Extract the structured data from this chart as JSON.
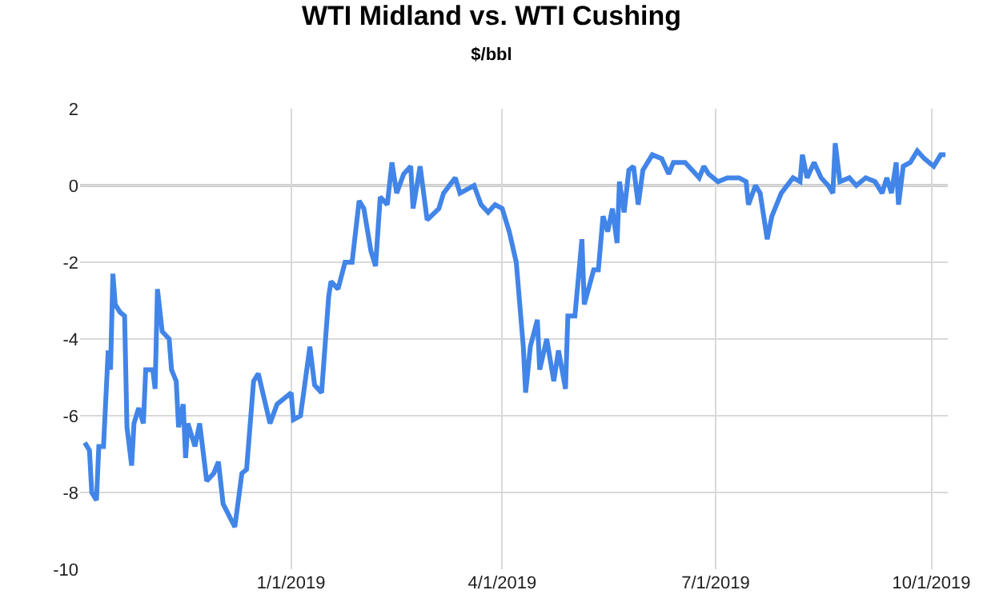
{
  "chart_data": {
    "type": "line",
    "title": "WTI Midland vs. WTI Cushing",
    "subtitle": "$/bbl",
    "x": [
      "2018-10-05",
      "2018-10-07",
      "2018-10-08",
      "2018-10-10",
      "2018-10-11",
      "2018-10-13",
      "2018-10-15",
      "2018-10-16",
      "2018-10-17",
      "2018-10-18",
      "2018-10-20",
      "2018-10-22",
      "2018-10-23",
      "2018-10-25",
      "2018-10-26",
      "2018-10-28",
      "2018-10-30",
      "2018-10-31",
      "2018-11-03",
      "2018-11-04",
      "2018-11-05",
      "2018-11-07",
      "2018-11-10",
      "2018-11-11",
      "2018-11-13",
      "2018-11-14",
      "2018-11-16",
      "2018-11-17",
      "2018-11-18",
      "2018-11-21",
      "2018-11-23",
      "2018-11-26",
      "2018-11-29",
      "2018-12-01",
      "2018-12-03",
      "2018-12-08",
      "2018-12-11",
      "2018-12-13",
      "2018-12-16",
      "2018-12-18",
      "2018-12-23",
      "2018-12-26",
      "2019-01-01",
      "2019-01-02",
      "2019-01-05",
      "2019-01-09",
      "2019-01-11",
      "2019-01-14",
      "2019-01-17",
      "2019-01-18",
      "2019-01-21",
      "2019-01-24",
      "2019-01-27",
      "2019-01-30",
      "2019-02-01",
      "2019-02-04",
      "2019-02-06",
      "2019-02-08",
      "2019-02-11",
      "2019-02-13",
      "2019-02-15",
      "2019-02-18",
      "2019-02-21",
      "2019-02-22",
      "2019-02-25",
      "2019-02-28",
      "2019-03-05",
      "2019-03-07",
      "2019-03-12",
      "2019-03-14",
      "2019-03-20",
      "2019-03-23",
      "2019-03-26",
      "2019-03-29",
      "2019-04-01",
      "2019-04-04",
      "2019-04-07",
      "2019-04-10",
      "2019-04-11",
      "2019-04-13",
      "2019-04-16",
      "2019-04-17",
      "2019-04-20",
      "2019-04-23",
      "2019-04-25",
      "2019-04-28",
      "2019-04-29",
      "2019-05-02",
      "2019-05-05",
      "2019-05-06",
      "2019-05-10",
      "2019-05-12",
      "2019-05-14",
      "2019-05-16",
      "2019-05-18",
      "2019-05-20",
      "2019-05-21",
      "2019-05-23",
      "2019-05-25",
      "2019-05-27",
      "2019-05-29",
      "2019-05-31",
      "2019-06-03",
      "2019-06-04",
      "2019-06-08",
      "2019-06-11",
      "2019-06-13",
      "2019-06-18",
      "2019-06-21",
      "2019-06-24",
      "2019-06-26",
      "2019-06-28",
      "2019-07-02",
      "2019-07-06",
      "2019-07-11",
      "2019-07-14",
      "2019-07-15",
      "2019-07-18",
      "2019-07-20",
      "2019-07-23",
      "2019-07-25",
      "2019-07-29",
      "2019-08-03",
      "2019-08-06",
      "2019-08-07",
      "2019-08-09",
      "2019-08-12",
      "2019-08-15",
      "2019-08-18",
      "2019-08-20",
      "2019-08-21",
      "2019-08-23",
      "2019-08-27",
      "2019-08-30",
      "2019-09-03",
      "2019-09-07",
      "2019-09-10",
      "2019-09-12",
      "2019-09-14",
      "2019-09-16",
      "2019-09-17",
      "2019-09-19",
      "2019-09-22",
      "2019-09-25",
      "2019-09-28",
      "2019-10-02",
      "2019-10-05",
      "2019-10-07"
    ],
    "series": [
      {
        "color": "#4285e8",
        "values": [
          -6.7,
          -6.9,
          -8.0,
          -8.2,
          -6.8,
          -6.8,
          -4.3,
          -4.8,
          -2.3,
          -3.1,
          -3.3,
          -3.4,
          -6.3,
          -7.3,
          -6.2,
          -5.8,
          -6.2,
          -4.8,
          -4.8,
          -5.3,
          -2.7,
          -3.8,
          -4.0,
          -4.8,
          -5.1,
          -6.3,
          -5.7,
          -7.1,
          -6.2,
          -6.8,
          -6.2,
          -7.7,
          -7.5,
          -7.2,
          -8.3,
          -8.9,
          -7.5,
          -7.4,
          -5.1,
          -4.9,
          -6.2,
          -5.7,
          -5.4,
          -6.1,
          -6.0,
          -4.2,
          -5.2,
          -5.4,
          -2.9,
          -2.5,
          -2.7,
          -2.0,
          -2.0,
          -0.4,
          -0.6,
          -1.7,
          -2.1,
          -0.3,
          -0.5,
          0.6,
          -0.2,
          0.3,
          0.5,
          -0.6,
          0.5,
          -0.9,
          -0.6,
          -0.2,
          0.2,
          -0.2,
          0.0,
          -0.5,
          -0.7,
          -0.5,
          -0.6,
          -1.2,
          -2.0,
          -4.2,
          -5.4,
          -4.2,
          -3.5,
          -4.8,
          -4.0,
          -5.1,
          -4.3,
          -5.3,
          -3.4,
          -3.4,
          -1.4,
          -3.1,
          -2.2,
          -2.2,
          -0.8,
          -1.2,
          -0.6,
          -1.5,
          0.1,
          -0.7,
          0.4,
          0.5,
          -0.5,
          0.4,
          0.7,
          0.8,
          0.7,
          0.3,
          0.6,
          0.6,
          0.4,
          0.2,
          0.5,
          0.3,
          0.1,
          0.2,
          0.2,
          0.1,
          -0.5,
          0.0,
          -0.2,
          -1.4,
          -0.8,
          -0.2,
          0.2,
          0.1,
          0.8,
          0.2,
          0.6,
          0.2,
          0.0,
          -0.2,
          1.1,
          0.1,
          0.2,
          0.0,
          0.2,
          0.1,
          -0.2,
          0.2,
          -0.2,
          0.6,
          -0.5,
          0.5,
          0.6,
          0.9,
          0.7,
          0.5,
          0.8,
          0.8
        ]
      }
    ],
    "xlim": [
      "2018-10-03",
      "2019-10-08"
    ],
    "xticks": [
      {
        "value": "2019-01-01",
        "label": "1/1/2019"
      },
      {
        "value": "2019-04-01",
        "label": "4/1/2019"
      },
      {
        "value": "2019-07-01",
        "label": "7/1/2019"
      },
      {
        "value": "2019-10-01",
        "label": "10/1/2019"
      }
    ],
    "ylim": [
      -10,
      2
    ],
    "yticks": [
      -10,
      -8,
      -6,
      -4,
      -2,
      0,
      2
    ],
    "ref_lines": [
      {
        "axis": "y",
        "value": 0,
        "color": "#333333"
      }
    ],
    "grid": true,
    "marker": "none",
    "line_style": "solid"
  }
}
